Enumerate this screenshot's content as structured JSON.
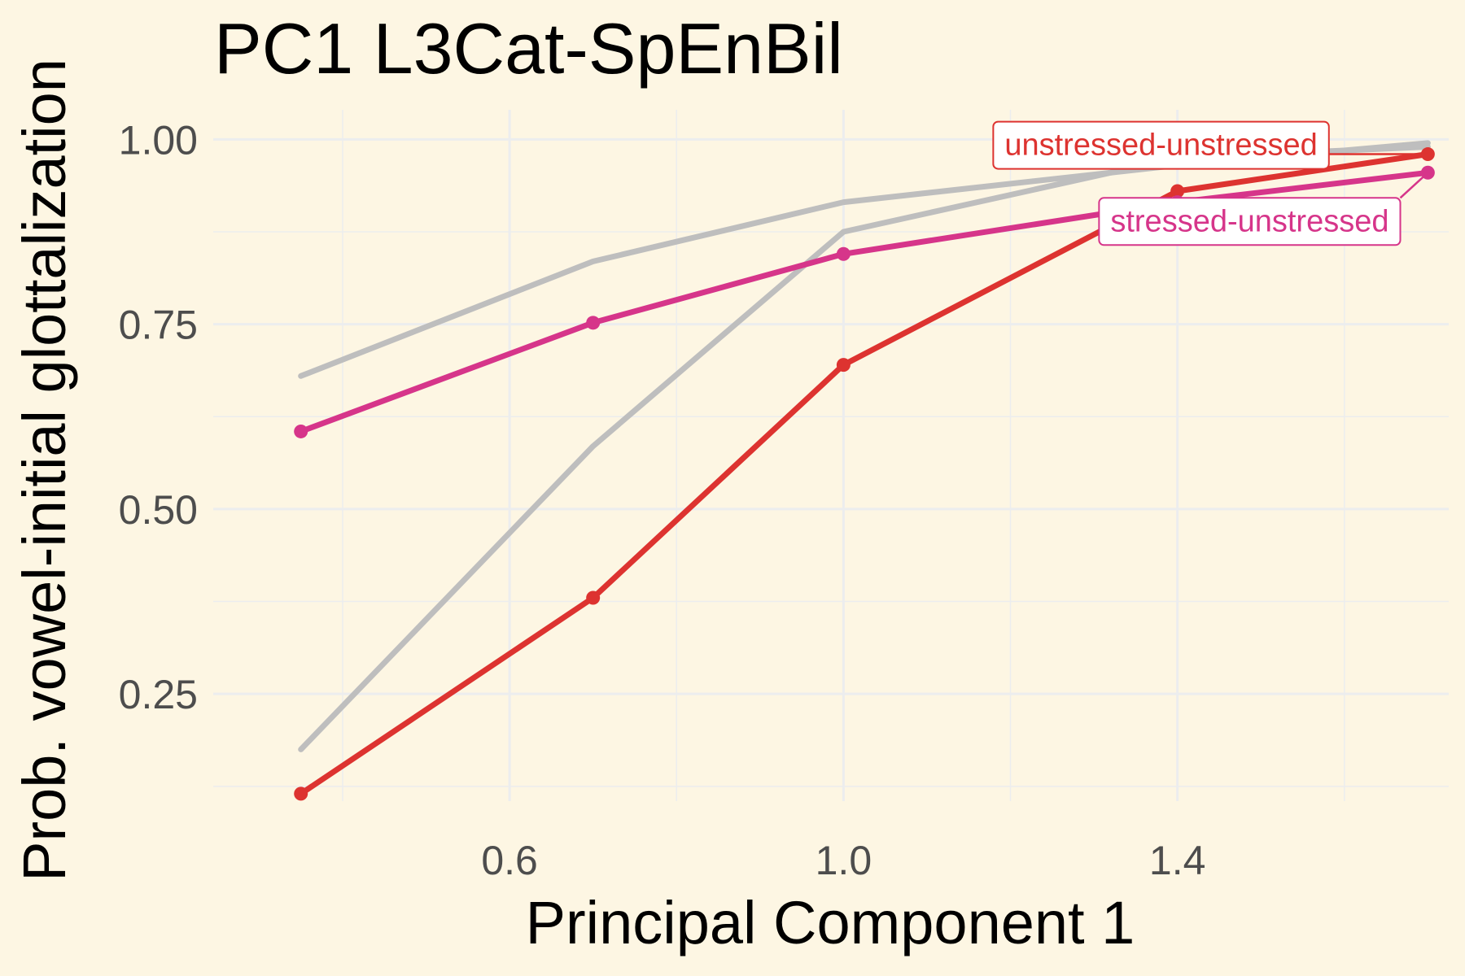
{
  "chart_data": {
    "type": "line",
    "title": "PC1 L3Cat-SpEnBil",
    "xlabel": "Principal Component 1",
    "ylabel": "Prob. vowel-initial glottalization",
    "xlim": [
      0.245,
      1.725
    ],
    "ylim": [
      0.105,
      1.04
    ],
    "x_ticks": [
      {
        "value": 0.6,
        "label": "0.6"
      },
      {
        "value": 1.0,
        "label": "1.0"
      },
      {
        "value": 1.4,
        "label": "1.4"
      }
    ],
    "x_minor_ticks": [
      0.4,
      0.8,
      1.2,
      1.6
    ],
    "y_ticks": [
      {
        "value": 0.25,
        "label": "0.25"
      },
      {
        "value": 0.5,
        "label": "0.50"
      },
      {
        "value": 0.75,
        "label": "0.75"
      },
      {
        "value": 1.0,
        "label": "1.00"
      }
    ],
    "y_minor_ticks": [
      0.125,
      0.375,
      0.625,
      0.875
    ],
    "grid": true,
    "background": "#FDF6E3",
    "grid_color": "#ECEDEE",
    "series": [
      {
        "name": "",
        "color": "#BEBEBE",
        "markers": false,
        "x": [
          0.35,
          0.7,
          1.0,
          1.4,
          1.7
        ],
        "y": [
          0.68,
          0.835,
          0.915,
          0.965,
          0.995
        ]
      },
      {
        "name": "",
        "color": "#BEBEBE",
        "markers": false,
        "x": [
          0.35,
          0.7,
          1.0,
          1.4,
          1.7
        ],
        "y": [
          0.175,
          0.585,
          0.875,
          0.975,
          0.99
        ]
      },
      {
        "name": "unstressed-unstressed",
        "color": "#DD3330",
        "markers": true,
        "x": [
          0.35,
          0.7,
          1.0,
          1.4,
          1.7
        ],
        "y": [
          0.115,
          0.38,
          0.695,
          0.93,
          0.98
        ]
      },
      {
        "name": "stressed-unstressed",
        "color": "#D6358A",
        "markers": true,
        "x": [
          0.35,
          0.7,
          1.0,
          1.4,
          1.7
        ],
        "y": [
          0.605,
          0.752,
          0.845,
          0.915,
          0.955
        ]
      }
    ]
  }
}
